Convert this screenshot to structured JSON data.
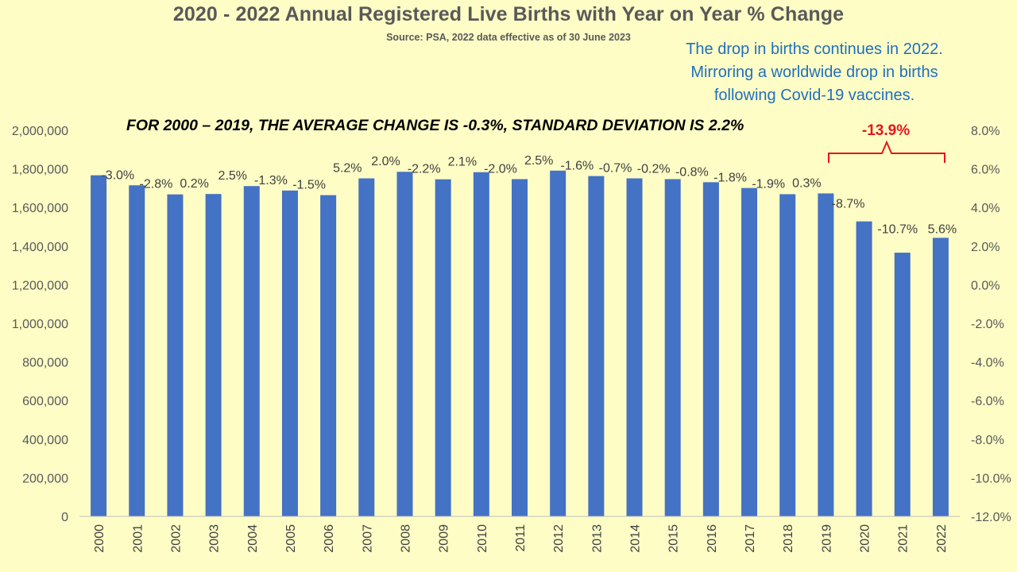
{
  "title": "2020 - 2022 Annual Registered Live Births with Year on Year % Change",
  "subtitle": "Source: PSA, 2022 data effective as of 30 June 2023",
  "note_lines": [
    "The drop in births continues in 2022.",
    "Mirroring a worldwide drop in births",
    "following Covid-19 vaccines."
  ],
  "stat_annotation": "FOR 2000 – 2019, THE AVERAGE CHANGE IS -0.3%, STANDARD DEVIATION IS 2.2%",
  "change_callout": "-13.9%",
  "colors": {
    "background": "#fefdc6",
    "bar": "#4472c4",
    "title": "#595959",
    "note": "#1f6fbf",
    "callout": "#e8151b"
  },
  "chart_data": {
    "type": "bar",
    "categories": [
      "2000",
      "2001",
      "2002",
      "2003",
      "2004",
      "2005",
      "2006",
      "2007",
      "2008",
      "2009",
      "2010",
      "2011",
      "2012",
      "2013",
      "2014",
      "2015",
      "2016",
      "2017",
      "2018",
      "2019",
      "2020",
      "2021",
      "2022"
    ],
    "series": [
      {
        "values": [
          1767000,
          1715000,
          1668000,
          1670000,
          1711000,
          1688000,
          1664000,
          1751000,
          1785000,
          1746000,
          1783000,
          1747000,
          1791000,
          1763000,
          1751000,
          1747000,
          1731000,
          1701000,
          1669000,
          1673000,
          1528000,
          1366000,
          1443000
        ],
        "labels": [
          "",
          "-3.0%",
          "-2.8%",
          "0.2%",
          "2.5%",
          "-1.3%",
          "-1.5%",
          "5.2%",
          "2.0%",
          "-2.2%",
          "2.1%",
          "-2.0%",
          "2.5%",
          "-1.6%",
          "-0.7%",
          "-0.2%",
          "-0.8%",
          "-1.8%",
          "-1.9%",
          "0.3%",
          "-8.7%",
          "-10.7%",
          "5.6%"
        ]
      }
    ],
    "y_left": {
      "min": 0,
      "max": 2000000,
      "step": 200000,
      "tick_labels": [
        "0",
        "200,000",
        "400,000",
        "600,000",
        "800,000",
        "1,000,000",
        "1,200,000",
        "1,400,000",
        "1,600,000",
        "1,800,000",
        "2,000,000"
      ]
    },
    "y_right": {
      "min": -12,
      "max": 8,
      "step": 2,
      "tick_labels": [
        "-12.0%",
        "-10.0%",
        "-8.0%",
        "-6.0%",
        "-4.0%",
        "-2.0%",
        "0.0%",
        "2.0%",
        "4.0%",
        "6.0%",
        "8.0%"
      ]
    },
    "grid": false,
    "legend": "none"
  }
}
